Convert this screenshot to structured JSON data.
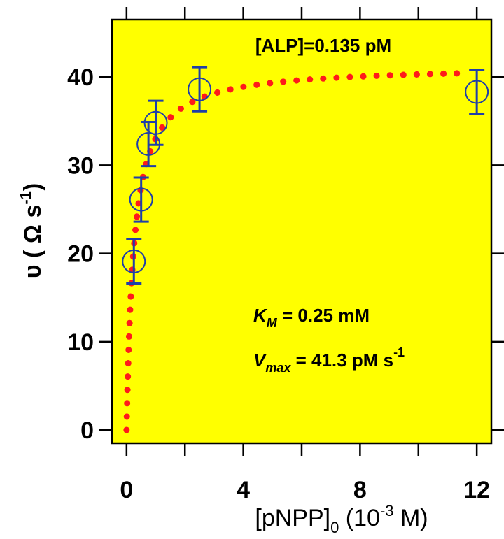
{
  "chart_data": {
    "type": "scatter",
    "title": "",
    "xlabel": "[pNPP]0 (10-3 M)",
    "ylabel": "υ ( Ω s-1)",
    "xlim": [
      -0.5,
      12.5
    ],
    "ylim": [
      -1.5,
      46.5
    ],
    "x_ticks": [
      0,
      4,
      8,
      12
    ],
    "y_ticks": [
      0,
      10,
      20,
      30,
      40
    ],
    "x_minor_ticks": [
      2,
      6,
      10
    ],
    "grid": false,
    "background": "#ffff00",
    "series": [
      {
        "kind": "scatter_with_errorbars",
        "marker": "open-circle",
        "color": "#1f3fa8",
        "x": [
          0.25,
          0.5,
          0.75,
          1.0,
          2.5,
          12.0
        ],
        "y": [
          19.1,
          26.1,
          32.4,
          34.8,
          38.6,
          38.3
        ],
        "yerr": [
          2.5,
          2.5,
          2.5,
          2.5,
          2.5,
          2.5
        ]
      },
      {
        "kind": "fit_curve",
        "style": "dotted",
        "color": "#ff1a1a",
        "model": "Michaelis-Menten",
        "Km": 0.25,
        "Vmax": 41.3,
        "x_range": [
          0,
          11.5
        ]
      }
    ],
    "annotations": {
      "concentration": "[ALP]=0.135 pM",
      "km_symbol": "K",
      "km_sub": "M",
      "km_value": " = 0.25 mM",
      "vmax_symbol": "V",
      "vmax_sub": "max",
      "vmax_value": " = 41.3 pM s",
      "vmax_sup": "-1"
    },
    "axis_text": {
      "x_main": "[pNPP]",
      "x_sub": "0",
      "x_rest1": " (10",
      "x_sup": "-3",
      "x_rest2": " M)",
      "y_main": "υ ( Ω s",
      "y_sup": "-1",
      "y_close": ")"
    }
  },
  "colors": {
    "plot_bg": "#ffff00",
    "markers": "#1f3fa8",
    "fit": "#ff1a1a",
    "axes": "#000000"
  }
}
